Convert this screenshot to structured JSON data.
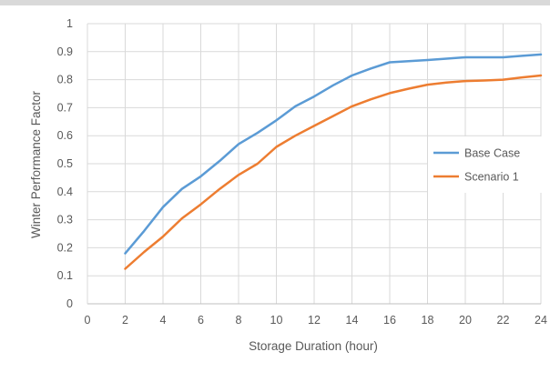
{
  "chart_data": {
    "type": "line",
    "title": "",
    "xlabel": "Storage Duration (hour)",
    "ylabel": "Winter Performance Factor",
    "xlim": [
      0,
      24
    ],
    "ylim": [
      0,
      1
    ],
    "x_ticks": [
      "0",
      "2",
      "4",
      "6",
      "8",
      "10",
      "12",
      "14",
      "16",
      "18",
      "20",
      "22",
      "24"
    ],
    "y_ticks": [
      "0",
      "0.1",
      "0.2",
      "0.3",
      "0.4",
      "0.5",
      "0.6",
      "0.7",
      "0.8",
      "0.9",
      "1"
    ],
    "grid": true,
    "legend_position": "right",
    "series": [
      {
        "name": "Base Case",
        "color": "#5B9BD5",
        "x": [
          2,
          3,
          4,
          5,
          6,
          7,
          8,
          9,
          10,
          11,
          12,
          13,
          14,
          15,
          16,
          17,
          18,
          19,
          20,
          21,
          22,
          23,
          24
        ],
        "y": [
          0.18,
          0.26,
          0.345,
          0.41,
          0.455,
          0.51,
          0.57,
          0.61,
          0.655,
          0.705,
          0.74,
          0.78,
          0.815,
          0.84,
          0.862,
          0.866,
          0.87,
          0.875,
          0.88,
          0.88,
          0.88,
          0.885,
          0.89
        ]
      },
      {
        "name": "Scenario 1",
        "color": "#ED7D31",
        "x": [
          2,
          3,
          4,
          5,
          6,
          7,
          8,
          9,
          10,
          11,
          12,
          13,
          14,
          15,
          16,
          17,
          18,
          19,
          20,
          21,
          22,
          23,
          24
        ],
        "y": [
          0.125,
          0.185,
          0.24,
          0.305,
          0.355,
          0.41,
          0.46,
          0.5,
          0.56,
          0.6,
          0.635,
          0.67,
          0.705,
          0.73,
          0.752,
          0.768,
          0.782,
          0.79,
          0.795,
          0.797,
          0.8,
          0.808,
          0.815
        ]
      }
    ]
  }
}
